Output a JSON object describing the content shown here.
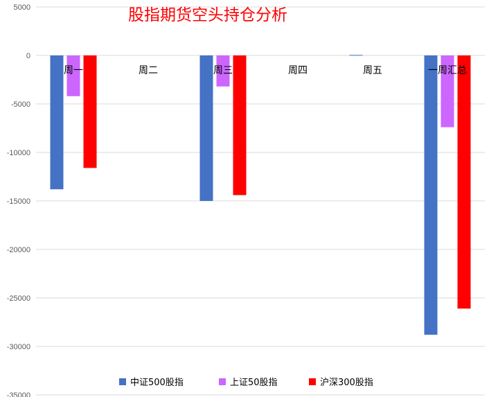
{
  "chart_data": {
    "type": "bar",
    "title": "股指期货空头持仓分析",
    "xlabel": "",
    "ylabel": "",
    "categories": [
      "周一",
      "周二",
      "周三",
      "周四",
      "周五",
      "一周汇总"
    ],
    "series": [
      {
        "name": "中证500股指",
        "color": "#4472c4",
        "values": [
          -13800,
          null,
          -15000,
          null,
          50,
          -28800
        ]
      },
      {
        "name": "上证50股指",
        "color": "#cc66ff",
        "values": [
          -4200,
          null,
          -3200,
          null,
          null,
          -7400
        ]
      },
      {
        "name": "沪深300股指",
        "color": "#ff0000",
        "values": [
          -11600,
          null,
          -14400,
          null,
          null,
          -26100
        ]
      }
    ],
    "ylim": [
      -35000,
      5000
    ],
    "yticks": [
      5000,
      0,
      -5000,
      -10000,
      -15000,
      -20000,
      -25000,
      -30000,
      -35000
    ],
    "grid": true,
    "legend": "bottom"
  }
}
